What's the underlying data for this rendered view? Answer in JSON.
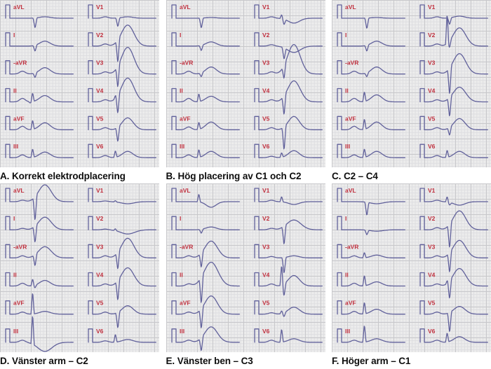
{
  "figure": {
    "type": "ecg-comparison-figure",
    "language": "Swedish",
    "panel_count": 6
  },
  "colors": {
    "page_bg": "#ffffff",
    "grid_bg": "#ececec",
    "grid_minor": "#dedee1",
    "grid_major": "#c8c8cb",
    "trace": "#61619b",
    "label": "#c02f3d",
    "caption": "#0e0e0e"
  },
  "chart_data": {
    "type": "line",
    "description": "Six 12-lead ECG panels on graph paper comparing electrode placements. Each panel shows limb leads (aVL, I, -aVR, II, aVF, III) in a left column and chest leads (V1-V6) in a right column; every strip begins with a rectangular calibration pulse and a red lead label. Waveforms are encoded as deflection amplitudes.",
    "amplitude_unit": "px, positive = upward deflection from baseline",
    "waveform_params": "p = P-wave, q/r/s = QRS spikes, t = T-wave hump, tw = T-wave width",
    "lead_order": [
      "aVL",
      "I",
      "-aVR",
      "II",
      "aVF",
      "III",
      "V1",
      "V2",
      "V3",
      "V4",
      "V5",
      "V6"
    ],
    "panels": [
      {
        "id": "A",
        "caption": "A. Korrekt elektrodplacering",
        "leads": [
          {
            "label": "aVL",
            "s": -15,
            "t": 2
          },
          {
            "label": "I",
            "s": -9,
            "t": 7
          },
          {
            "label": "-aVR",
            "p": 4,
            "s": -7,
            "t": 9
          },
          {
            "label": "II",
            "p": 5,
            "q": -2,
            "r": 13,
            "t": 9
          },
          {
            "label": "aVF",
            "p": 5,
            "r": 14,
            "t": 10
          },
          {
            "label": "III",
            "p": 4,
            "r": 13,
            "t": 8
          },
          {
            "label": "V1",
            "p": 2,
            "s": -13,
            "t": 2
          },
          {
            "label": "V2",
            "p": 3,
            "s": -34,
            "t": 30,
            "tw": 9
          },
          {
            "label": "V3",
            "p": 3,
            "s": -32,
            "t": 38,
            "tw": 9
          },
          {
            "label": "V4",
            "p": 3,
            "r": 4,
            "s": -28,
            "t": 34,
            "tw": 9
          },
          {
            "label": "V5",
            "p": 3,
            "s": -22,
            "t": 17,
            "tw": 8
          },
          {
            "label": "V6",
            "p": 3,
            "r": 10,
            "t": 9
          }
        ]
      },
      {
        "id": "B",
        "caption": "B. Hög placering av C1 och C2",
        "leads": [
          {
            "label": "aVL",
            "s": -15,
            "t": 1
          },
          {
            "label": "I",
            "s": -8,
            "t": 6
          },
          {
            "label": "-aVR",
            "p": 4,
            "s": -6,
            "t": 10
          },
          {
            "label": "II",
            "p": 5,
            "r": 12,
            "t": 8
          },
          {
            "label": "aVF",
            "p": 4,
            "r": 11,
            "t": 11
          },
          {
            "label": "III",
            "p": 4,
            "r": 12,
            "t": 9
          },
          {
            "label": "V1",
            "p": 2,
            "r": 6,
            "s": -8,
            "t": -7,
            "tw": 8
          },
          {
            "label": "V2",
            "p": 2,
            "s": -17,
            "t": -9,
            "tw": 9
          },
          {
            "label": "V3",
            "p": 3,
            "s": -20,
            "t": 42,
            "tw": 9
          },
          {
            "label": "V4",
            "p": 3,
            "s": -29,
            "t": 30,
            "tw": 9
          },
          {
            "label": "V5",
            "p": 3,
            "s": -35,
            "t": 19,
            "tw": 8
          },
          {
            "label": "V6",
            "p": 2,
            "r": 7,
            "t": 10
          }
        ]
      },
      {
        "id": "C",
        "caption": "C. C2 – C4",
        "leads": [
          {
            "label": "aVL",
            "s": -16,
            "t": 1
          },
          {
            "label": "I",
            "s": -9,
            "t": 7
          },
          {
            "label": "-aVR",
            "p": 4,
            "s": -6,
            "t": 10
          },
          {
            "label": "II",
            "p": 5,
            "r": 15,
            "t": 10
          },
          {
            "label": "aVF",
            "p": 5,
            "r": 16,
            "t": 11
          },
          {
            "label": "III",
            "p": 4,
            "r": 13,
            "t": 9
          },
          {
            "label": "V1",
            "p": 2,
            "s": -10,
            "t": 3
          },
          {
            "label": "V2",
            "p": 3,
            "r": 45,
            "s": -10,
            "t": 26,
            "tw": 9
          },
          {
            "label": "V3",
            "p": 3,
            "s": -40,
            "t": 29,
            "tw": 9
          },
          {
            "label": "V4",
            "p": 3,
            "s": -29,
            "t": 21,
            "tw": 9
          },
          {
            "label": "V5",
            "p": 3,
            "s": -12,
            "t": 16,
            "tw": 8
          },
          {
            "label": "V6",
            "p": 3,
            "r": 11,
            "t": 9
          }
        ]
      },
      {
        "id": "D",
        "caption": "D. Vänster arm – C2",
        "leads": [
          {
            "label": "aVL",
            "p": 2,
            "s": -36,
            "t": 24,
            "tw": 9
          },
          {
            "label": "I",
            "p": 2,
            "s": -25,
            "t": 18,
            "tw": 9
          },
          {
            "label": "-aVR",
            "p": 3,
            "s": -17,
            "t": 16,
            "tw": 9
          },
          {
            "label": "II",
            "p": 4,
            "r": 10,
            "s": -4,
            "t": 8
          },
          {
            "label": "aVF",
            "p": 3,
            "r": 33,
            "t": 4
          },
          {
            "label": "III",
            "p": 3,
            "r": 45,
            "t": -13,
            "tw": 10
          },
          {
            "label": "V1",
            "p": 1,
            "r": 2,
            "t": -3,
            "tw": 9
          },
          {
            "label": "V2",
            "p": 1,
            "r": 3,
            "t": -6,
            "tw": 10
          },
          {
            "label": "V3",
            "p": 3,
            "s": -26,
            "t": 28,
            "tw": 9
          },
          {
            "label": "V4",
            "p": 3,
            "s": -30,
            "t": 26,
            "tw": 9
          },
          {
            "label": "V5",
            "p": 3,
            "s": -24,
            "t": 12,
            "tw": 8
          },
          {
            "label": "V6",
            "p": 2,
            "r": 12,
            "t": 4
          }
        ]
      },
      {
        "id": "E",
        "caption": "E. Vänster ben – C3",
        "leads": [
          {
            "label": "aVL",
            "r": 12,
            "t": -8,
            "tw": 7
          },
          {
            "label": "I",
            "s": -6,
            "t": 4
          },
          {
            "label": "-aVR",
            "p": 3,
            "s": -22,
            "t": 24,
            "tw": 9
          },
          {
            "label": "II",
            "p": 3,
            "s": -40,
            "t": 34,
            "tw": 10
          },
          {
            "label": "aVF",
            "p": 3,
            "s": -30,
            "t": 26,
            "tw": 9
          },
          {
            "label": "III",
            "p": 3,
            "s": -20,
            "t": 22,
            "tw": 9
          },
          {
            "label": "V1",
            "p": 2,
            "r": 8,
            "t": -4
          },
          {
            "label": "V2",
            "p": 2,
            "s": -28,
            "t": 14,
            "tw": 10
          },
          {
            "label": "V3",
            "p": 2,
            "s": -24,
            "t": 3
          },
          {
            "label": "V4",
            "p": 3,
            "r": 30,
            "s": -18,
            "t": 15,
            "tw": 8
          },
          {
            "label": "V5",
            "p": 2,
            "r": 4,
            "s": -6,
            "t": 10,
            "tw": 8
          },
          {
            "label": "V6",
            "p": 3,
            "r": 20,
            "t": 5
          }
        ]
      },
      {
        "id": "F",
        "caption": "F. Höger arm – C1",
        "leads": [
          {
            "label": "aVL",
            "s": -20,
            "t": -3,
            "tw": 9
          },
          {
            "label": "I",
            "s": -7,
            "t": -2,
            "tw": 9
          },
          {
            "label": "-aVR",
            "p": 3,
            "r": 8,
            "t": 4
          },
          {
            "label": "II",
            "p": 4,
            "r": 16,
            "t": 6
          },
          {
            "label": "aVF",
            "p": 4,
            "r": 18,
            "t": 7
          },
          {
            "label": "III",
            "p": 3,
            "r": 26,
            "t": 5
          },
          {
            "label": "V1",
            "p": 2,
            "r": 8,
            "s": -4,
            "t": -5,
            "tw": 8
          },
          {
            "label": "V2",
            "p": 3,
            "s": -36,
            "t": 27,
            "tw": 9
          },
          {
            "label": "V3",
            "p": 3,
            "s": -30,
            "t": 25,
            "tw": 9
          },
          {
            "label": "V4",
            "p": 3,
            "r": 4,
            "s": -27,
            "t": 25,
            "tw": 9
          },
          {
            "label": "V5",
            "p": 3,
            "s": -30,
            "t": 11,
            "tw": 8
          },
          {
            "label": "V6",
            "p": 3,
            "r": 14,
            "t": 8
          }
        ]
      }
    ]
  }
}
